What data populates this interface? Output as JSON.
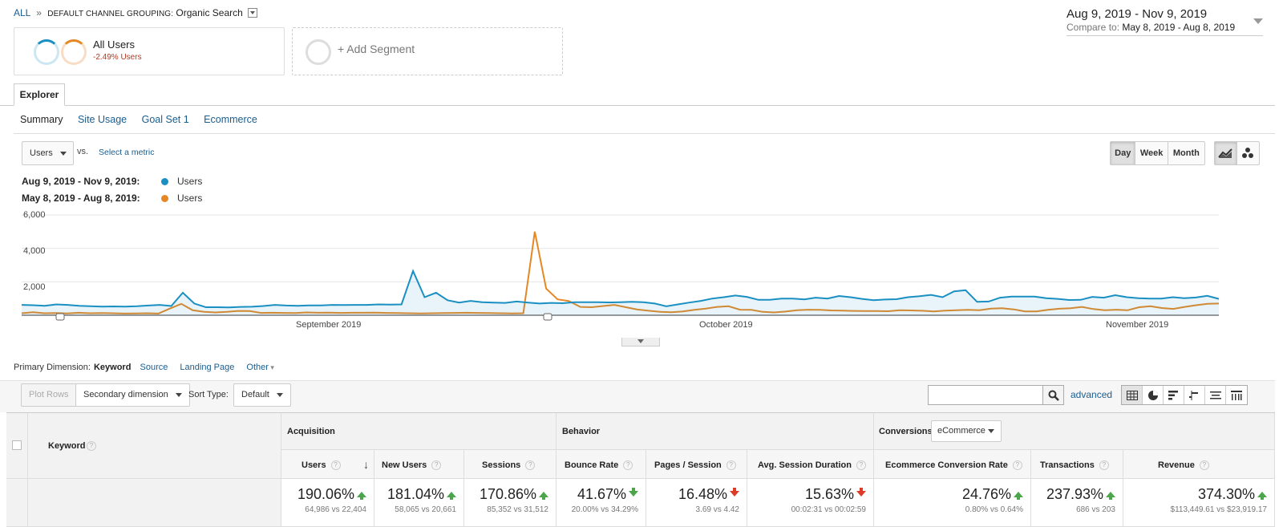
{
  "breadcrumb": {
    "all": "ALL",
    "sep": "»",
    "grouping_label": "DEFAULT CHANNEL GROUPING:",
    "grouping_value": "Organic Search"
  },
  "date_range": {
    "main": "Aug 9, 2019 - Nov 9, 2019",
    "compare_label": "Compare to:",
    "compare_value": "May 8, 2019 - Aug 8, 2019"
  },
  "segments": {
    "all_users": "All Users",
    "all_users_change": "-2.49% Users",
    "add_segment": "+ Add Segment"
  },
  "tabs": {
    "explorer": "Explorer",
    "sub": [
      "Summary",
      "Site Usage",
      "Goal Set 1",
      "Ecommerce"
    ]
  },
  "chart_controls": {
    "metric": "Users",
    "vs": "vs.",
    "select_metric": "Select a metric",
    "granularity": [
      "Day",
      "Week",
      "Month"
    ],
    "active_granularity": "Day"
  },
  "legend": [
    {
      "range": "Aug 9, 2019 - Nov 9, 2019:",
      "metric": "Users",
      "color": "#1a8fc2"
    },
    {
      "range": "May 8, 2019 - Aug 8, 2019:",
      "metric": "Users",
      "color": "#e58824"
    }
  ],
  "chart_data": {
    "type": "line",
    "y_ticks": [
      "6,000",
      "4,000",
      "2,000"
    ],
    "x_ticks": [
      "September 2019",
      "October 2019",
      "November 2019"
    ],
    "ylim": [
      0,
      6000
    ],
    "series": [
      {
        "name": "Users",
        "color": "#1a8fc2",
        "fill": true,
        "values": [
          620,
          600,
          560,
          650,
          620,
          560,
          540,
          520,
          530,
          520,
          540,
          580,
          620,
          550,
          1350,
          700,
          480,
          480,
          470,
          500,
          510,
          550,
          620,
          580,
          560,
          590,
          590,
          620,
          610,
          620,
          620,
          650,
          640,
          650,
          2650,
          1080,
          1350,
          900,
          760,
          860,
          780,
          760,
          740,
          820,
          760,
          700,
          740,
          720,
          780,
          780,
          780,
          770,
          780,
          800,
          780,
          700,
          540,
          650,
          760,
          860,
          1000,
          1080,
          1180,
          1100,
          920,
          920,
          1000,
          1000,
          950,
          1050,
          1000,
          1150,
          1080,
          980,
          900,
          940,
          960,
          1080,
          1140,
          1220,
          1080,
          1430,
          1500,
          800,
          820,
          1050,
          1120,
          1120,
          1120,
          1020,
          980,
          910,
          920,
          1100,
          1050,
          1200,
          1080,
          1020,
          1000,
          1000,
          1080,
          1020,
          1060,
          1160,
          980
        ]
      },
      {
        "name": "Users",
        "color": "#e58824",
        "fill": false,
        "values": [
          120,
          180,
          120,
          130,
          110,
          150,
          120,
          130,
          120,
          100,
          110,
          120,
          100,
          400,
          680,
          300,
          200,
          170,
          200,
          260,
          250,
          140,
          150,
          140,
          130,
          170,
          150,
          160,
          140,
          150,
          150,
          160,
          140,
          130,
          120,
          110,
          120,
          130,
          140,
          150,
          140,
          130,
          120,
          110,
          120,
          5000,
          1600,
          950,
          850,
          500,
          480,
          550,
          620,
          480,
          340,
          270,
          200,
          180,
          230,
          320,
          400,
          500,
          540,
          330,
          320,
          200,
          170,
          220,
          300,
          330,
          320,
          290,
          280,
          260,
          250,
          250,
          240,
          300,
          290,
          270,
          230,
          280,
          300,
          320,
          300,
          400,
          420,
          350,
          230,
          230,
          320,
          390,
          420,
          500,
          370,
          300,
          330,
          300,
          480,
          540,
          430,
          380,
          500,
          600,
          680,
          700
        ]
      }
    ]
  },
  "primary_dimension": {
    "label": "Primary Dimension:",
    "active": "Keyword",
    "options": [
      "Source",
      "Landing Page",
      "Other"
    ]
  },
  "toolbar": {
    "plot_rows": "Plot Rows",
    "secondary_dimension": "Secondary dimension",
    "sort_type_label": "Sort Type:",
    "sort_type_value": "Default",
    "search_value": "",
    "advanced": "advanced"
  },
  "table": {
    "keyword_header": "Keyword",
    "groups": {
      "acquisition": "Acquisition",
      "behavior": "Behavior",
      "conversions": "Conversions",
      "conversions_select": "eCommerce"
    },
    "columns": [
      {
        "name": "Users",
        "pct": "190.06%",
        "cmp": "64,986 vs 22,404",
        "dir": "up"
      },
      {
        "name": "New Users",
        "pct": "181.04%",
        "cmp": "58,065 vs 20,661",
        "dir": "up"
      },
      {
        "name": "Sessions",
        "pct": "170.86%",
        "cmp": "85,352 vs 31,512",
        "dir": "up"
      },
      {
        "name": "Bounce Rate",
        "pct": "41.67%",
        "cmp": "20.00% vs 34.29%",
        "dir": "down-good"
      },
      {
        "name": "Pages / Session",
        "pct": "16.48%",
        "cmp": "3.69 vs 4.42",
        "dir": "down"
      },
      {
        "name": "Avg. Session Duration",
        "pct": "15.63%",
        "cmp": "00:02:31 vs 00:02:59",
        "dir": "down"
      },
      {
        "name": "Ecommerce Conversion Rate",
        "pct": "24.76%",
        "cmp": "0.80% vs 0.64%",
        "dir": "up"
      },
      {
        "name": "Transactions",
        "pct": "237.93%",
        "cmp": "686 vs 203",
        "dir": "up"
      },
      {
        "name": "Revenue",
        "pct": "374.30%",
        "cmp": "$113,449.61 vs $23,919.17",
        "dir": "up"
      }
    ]
  }
}
